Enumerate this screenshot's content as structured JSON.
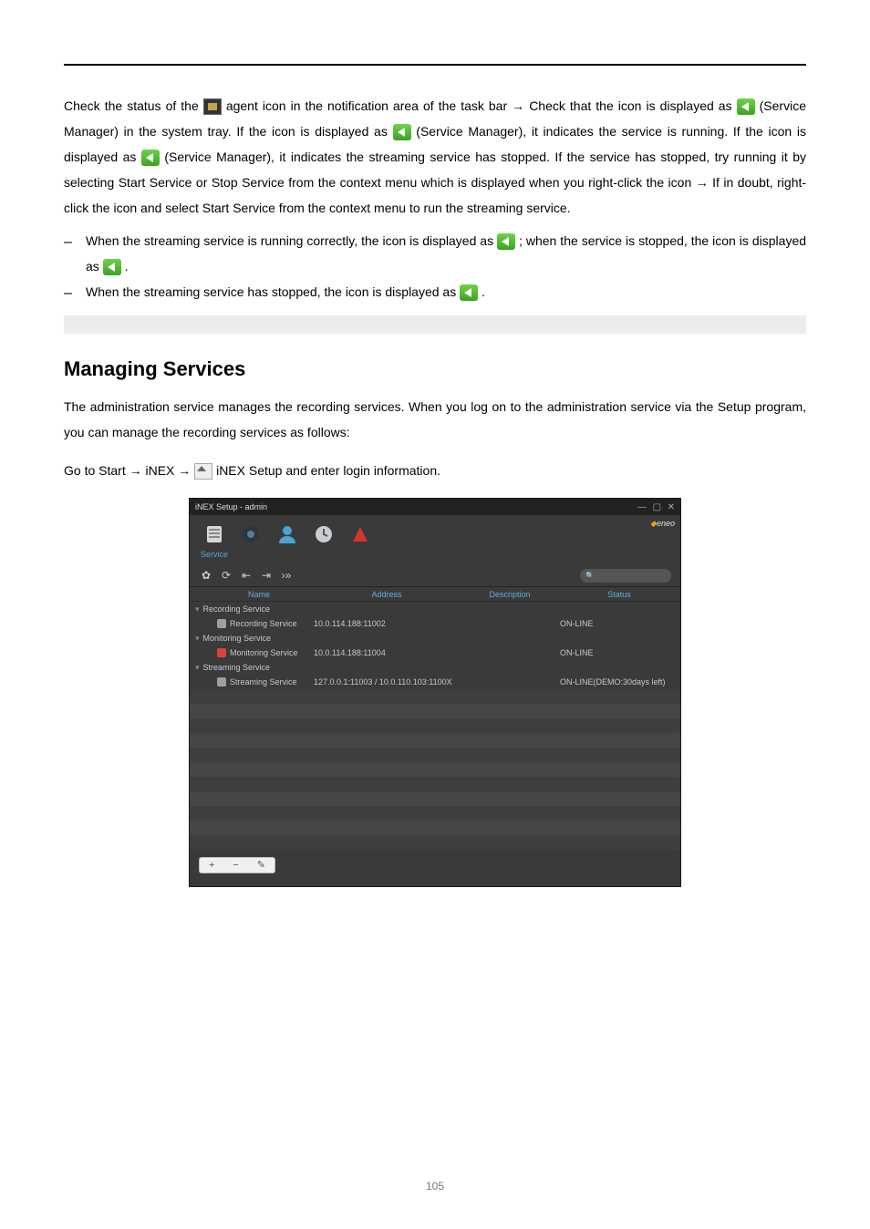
{
  "paragraph": {
    "p1a": "Check the status of the ",
    "p1b": " agent icon in the notification area of the task bar ",
    "p1c": " Check that the icon is displayed as ",
    "p1d": " (Service Manager) in the system tray. If the icon is displayed as ",
    "p1e": " (Service Manager), it indicates the service is running. If the icon is displayed as ",
    "p1f": " (Service Manager), it indicates the streaming service has stopped. If the service has stopped, try running it by selecting ",
    "p1g": "Start Service",
    "p1h": " or ",
    "p1i": "Stop Service",
    "p1j": " from the context menu which is displayed when you right-click the icon ",
    "p1k": " If in doubt, right-click the icon and select ",
    "p1l": "Start Service",
    "p1m": " from the context menu to run the streaming service."
  },
  "list": {
    "i1a": "When the streaming service is running correctly, the icon is displayed as ",
    "i1b": "; when the service is stopped, the icon is displayed as ",
    "i2a": "When the streaming service has stopped, the icon is displayed as ",
    "i2b": "."
  },
  "section_title": "Managing Services",
  "para2": {
    "a": "The administration service manages the recording services. When you log on to the administration service via the Setup program, you can manage the recording services as follows:",
    "b": "Go to ",
    "c": "Start",
    "d": "iNEX",
    "e": "iNEX Setup",
    "f": " and enter login information."
  },
  "app": {
    "title": "iNEX Setup - admin",
    "brand": "eneo",
    "tabs_label": "Service",
    "search_placeholder": "",
    "cols": {
      "name": "Name",
      "address": "Address",
      "description": "Description",
      "status": "Status"
    },
    "groups": [
      {
        "label": "Recording Service",
        "rows": [
          {
            "icon_color": "#9aa0a6",
            "name": "Recording Service",
            "address": "10.0.114.188:11002",
            "description": "",
            "status": "ON-LINE"
          }
        ]
      },
      {
        "label": "Monitoring Service",
        "rows": [
          {
            "icon_color": "#d9433b",
            "name": "Monitoring Service",
            "address": "10.0.114.188:11004",
            "description": "",
            "status": "ON-LINE"
          }
        ]
      },
      {
        "label": "Streaming Service",
        "rows": [
          {
            "icon_color": "#9aa0a6",
            "name": "Streaming Service",
            "address": "127.0.0.1:11003  /  10.0.110.103:1100X",
            "description": "",
            "status": "ON-LINE(DEMO:30days left)"
          }
        ]
      }
    ],
    "footer_buttons": [
      "+",
      "−",
      "✎"
    ]
  },
  "page_number": "105"
}
